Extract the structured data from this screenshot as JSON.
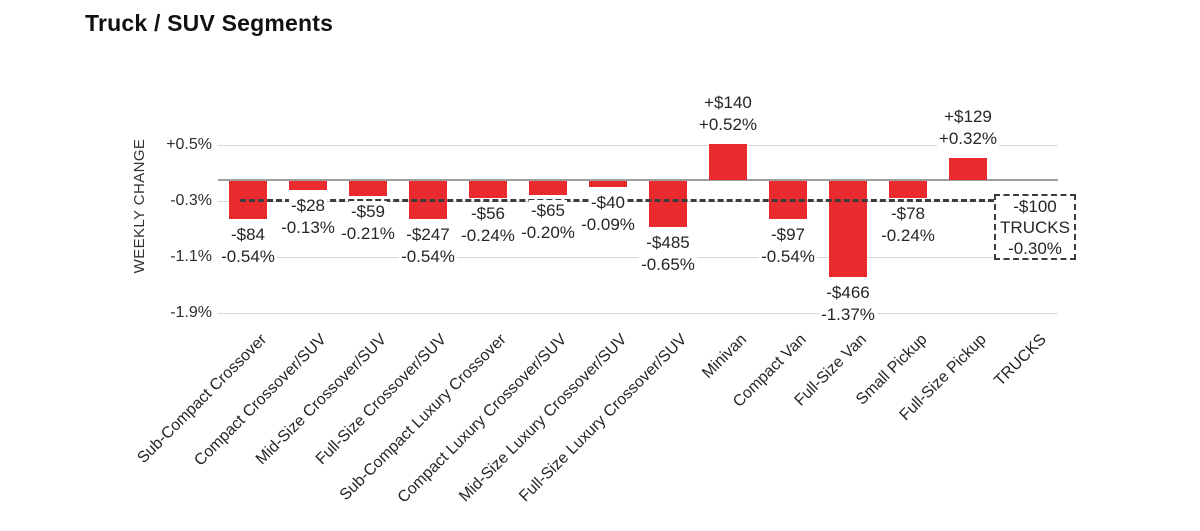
{
  "title": "Truck / SUV Segments",
  "colors": {
    "bar": "#ea2a2c",
    "gridline": "#d7d7d7",
    "zero_line": "#9e9e9e",
    "dashed_line": "#3c3c3c",
    "text": "#262626",
    "background": "#ffffff"
  },
  "chart_data": {
    "type": "bar",
    "title": "Truck / SUV Segments",
    "ylabel": "WEEKLY CHANGE",
    "xlabel": "",
    "ylim": [
      -2.2,
      0.9
    ],
    "grid": true,
    "legend_position": "none",
    "ytick_labels": [
      "+0.5%",
      "-0.3%",
      "-1.1%",
      "-1.9%"
    ],
    "ytick_values": [
      0.5,
      -0.3,
      -1.1,
      -1.9
    ],
    "bars": [
      {
        "category": "Sub-Compact Crossover",
        "dollar": "-$84",
        "percent": "-0.54%",
        "value": -0.54
      },
      {
        "category": "Compact Crossover/SUV",
        "dollar": "-$28",
        "percent": "-0.13%",
        "value": -0.13
      },
      {
        "category": "Mid-Size Crossover/SUV",
        "dollar": "-$59",
        "percent": "-0.21%",
        "value": -0.21
      },
      {
        "category": "Full-Size Crossover/SUV",
        "dollar": "-$247",
        "percent": "-0.54%",
        "value": -0.54
      },
      {
        "category": "Sub-Compact Luxury Crossover",
        "dollar": "-$56",
        "percent": "-0.24%",
        "value": -0.24
      },
      {
        "category": "Compact Luxury Crossover/SUV",
        "dollar": "-$65",
        "percent": "-0.20%",
        "value": -0.2
      },
      {
        "category": "Mid-Size Luxury Crossover/SUV",
        "dollar": "-$40",
        "percent": "-0.09%",
        "value": -0.09
      },
      {
        "category": "Full-Size Luxury Crossover/SUV",
        "dollar": "-$485",
        "percent": "-0.65%",
        "value": -0.65
      },
      {
        "category": "Minivan",
        "dollar": "+$140",
        "percent": "+0.52%",
        "value": 0.52
      },
      {
        "category": "Compact Van",
        "dollar": "-$97",
        "percent": "-0.54%",
        "value": -0.54
      },
      {
        "category": "Full-Size Van",
        "dollar": "-$466",
        "percent": "-1.37%",
        "value": -1.37
      },
      {
        "category": "Small Pickup",
        "dollar": "-$78",
        "percent": "-0.24%",
        "value": -0.24
      },
      {
        "category": "Full-Size Pickup",
        "dollar": "+$129",
        "percent": "+0.32%",
        "value": 0.32
      }
    ],
    "summary": {
      "category": "TRUCKS",
      "dollar": "-$100",
      "percent": "-0.30%",
      "value": -0.3,
      "presentation": "dashed box at end of axis plus dashed horizontal reference line across the plot"
    }
  }
}
